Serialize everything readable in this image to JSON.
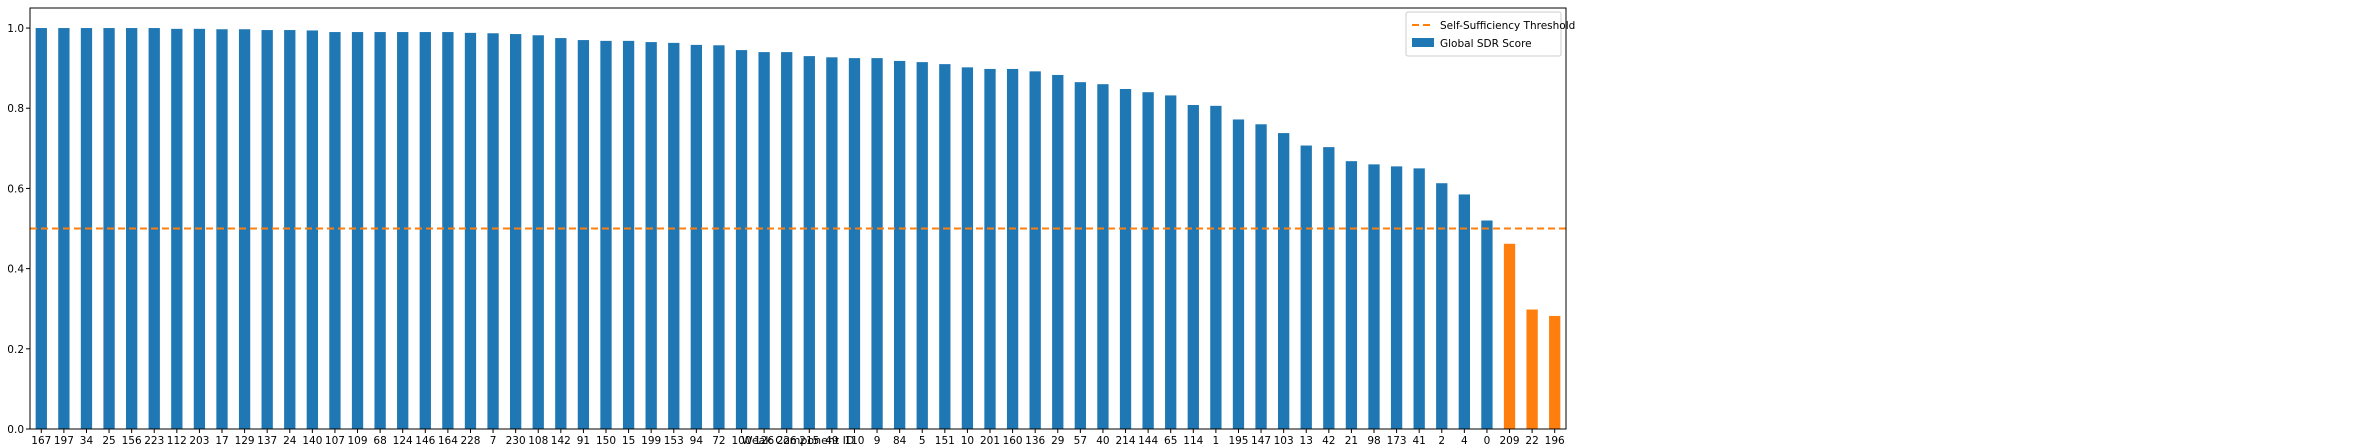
{
  "chart_data": {
    "type": "bar",
    "xlabel": "Weak Component ID",
    "ylabel": "",
    "title": "",
    "ylim": [
      0,
      1.05
    ],
    "yticks": [
      0.0,
      0.2,
      0.4,
      0.6,
      0.8,
      1.0
    ],
    "ytick_labels": [
      "0.0",
      "0.2",
      "0.4",
      "0.6",
      "0.8",
      "1.0"
    ],
    "grid": false,
    "legend_position": "top-right",
    "threshold": {
      "name": "Self-Sufficiency Threshold",
      "value": 0.5,
      "color": "#ff7f0e",
      "style": "dashed"
    },
    "series": [
      {
        "name": "Global SDR Score",
        "color": "#1f77b4",
        "below_threshold_color": "#ff7f0e"
      }
    ],
    "categories": [
      "167",
      "197",
      "34",
      "25",
      "156",
      "223",
      "112",
      "203",
      "17",
      "129",
      "137",
      "24",
      "140",
      "107",
      "109",
      "68",
      "124",
      "146",
      "164",
      "228",
      "7",
      "230",
      "108",
      "142",
      "91",
      "150",
      "15",
      "199",
      "153",
      "94",
      "72",
      "100",
      "126",
      "226",
      "215",
      "49",
      "110",
      "9",
      "84",
      "5",
      "151",
      "10",
      "201",
      "160",
      "136",
      "29",
      "57",
      "40",
      "214",
      "144",
      "65",
      "114",
      "1",
      "195",
      "147",
      "103",
      "13",
      "42",
      "21",
      "98",
      "173",
      "41",
      "2",
      "4",
      "0",
      "209",
      "22",
      "196"
    ],
    "values": [
      1.0,
      1.0,
      1.0,
      1.0,
      1.0,
      1.0,
      0.998,
      0.998,
      0.997,
      0.997,
      0.995,
      0.995,
      0.994,
      0.99,
      0.99,
      0.99,
      0.99,
      0.99,
      0.99,
      0.988,
      0.987,
      0.985,
      0.982,
      0.975,
      0.97,
      0.968,
      0.968,
      0.965,
      0.963,
      0.958,
      0.957,
      0.945,
      0.94,
      0.94,
      0.93,
      0.927,
      0.925,
      0.925,
      0.918,
      0.915,
      0.91,
      0.902,
      0.898,
      0.898,
      0.892,
      0.883,
      0.865,
      0.86,
      0.848,
      0.84,
      0.832,
      0.808,
      0.806,
      0.772,
      0.76,
      0.738,
      0.707,
      0.703,
      0.668,
      0.66,
      0.655,
      0.65,
      0.613,
      0.585,
      0.52,
      0.462,
      0.298,
      0.282
    ]
  }
}
